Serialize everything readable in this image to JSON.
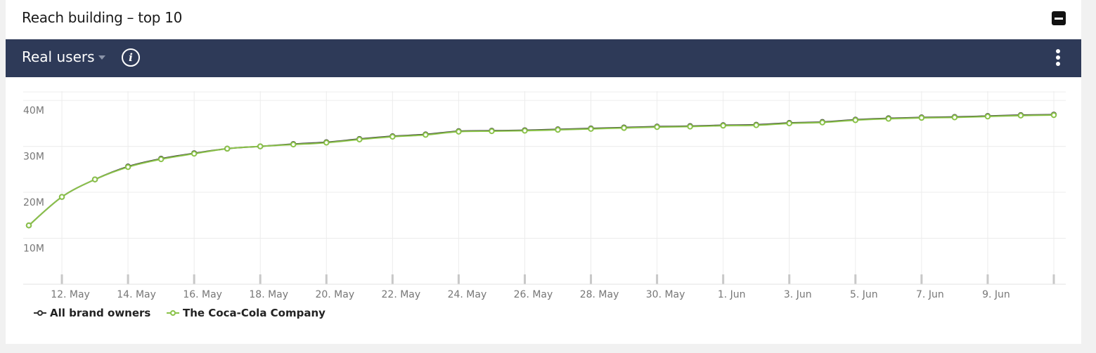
{
  "panel": {
    "title": "Reach building – top 10",
    "metric": "Real users",
    "info_glyph": "i"
  },
  "colors": {
    "toolbar_bg": "#2e3a58",
    "series_all": "#333333",
    "series_coca_cola": "#8bc34a"
  },
  "icons": [
    "collapse-icon",
    "dropdown-caret-icon",
    "info-icon",
    "more-vert-icon"
  ],
  "chart_data": {
    "type": "line",
    "x_ticks": [
      "12. May",
      "14. May",
      "16. May",
      "18. May",
      "20. May",
      "22. May",
      "24. May",
      "26. May",
      "28. May",
      "30. May",
      "1. Jun",
      "3. Jun",
      "5. Jun",
      "7. Jun",
      "9. Jun"
    ],
    "y_ticks": [
      "10M",
      "20M",
      "30M",
      "40M"
    ],
    "ylim": [
      0,
      42000000
    ],
    "grid": true,
    "legend": "bottom-left",
    "x": [
      "11. May",
      "12. May",
      "13. May",
      "14. May",
      "15. May",
      "16. May",
      "17. May",
      "18. May",
      "19. May",
      "20. May",
      "21. May",
      "22. May",
      "23. May",
      "24. May",
      "25. May",
      "26. May",
      "27. May",
      "28. May",
      "29. May",
      "30. May",
      "31. May",
      "1. Jun",
      "2. Jun",
      "3. Jun",
      "4. Jun",
      "5. Jun",
      "6. Jun",
      "7. Jun",
      "8. Jun",
      "9. Jun",
      "10. Jun",
      "11. Jun"
    ],
    "series": [
      {
        "name": "All brand owners",
        "values": [
          12800000,
          19000000,
          22800000,
          25600000,
          27300000,
          28500000,
          29500000,
          30000000,
          30500000,
          30900000,
          31600000,
          32200000,
          32600000,
          33300000,
          33400000,
          33500000,
          33700000,
          33900000,
          34100000,
          34300000,
          34400000,
          34600000,
          34700000,
          35100000,
          35300000,
          35800000,
          36100000,
          36300000,
          36400000,
          36600000,
          36800000,
          36900000
        ]
      },
      {
        "name": "The Coca-Cola Company",
        "values": [
          12800000,
          19000000,
          22800000,
          25500000,
          27200000,
          28400000,
          29500000,
          30000000,
          30400000,
          30800000,
          31500000,
          32100000,
          32500000,
          33200000,
          33300000,
          33400000,
          33600000,
          33800000,
          34000000,
          34200000,
          34300000,
          34500000,
          34600000,
          35000000,
          35200000,
          35700000,
          36000000,
          36200000,
          36300000,
          36500000,
          36700000,
          36800000
        ]
      }
    ]
  }
}
